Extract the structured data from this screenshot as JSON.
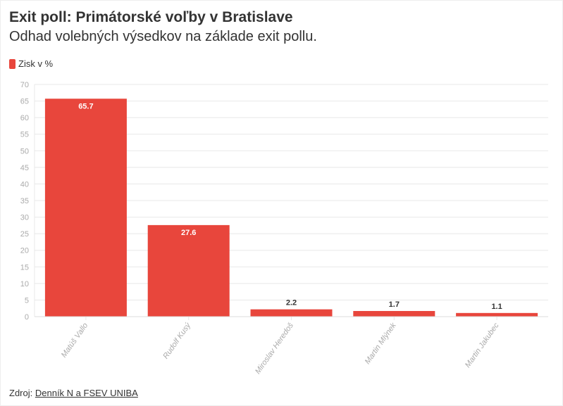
{
  "title": "Exit poll: Primátorské voľby v Bratislave",
  "subtitle": "Odhad volebných výsedkov na základe exit pollu.",
  "legend_label": "Zisk v %",
  "source_prefix": "Zdroj:",
  "source_link": "Denník N a FSEV UNIBA",
  "colors": {
    "bar": "#e8463c",
    "grid": "#e8e8e8",
    "tick": "#aaaaaa"
  },
  "chart_data": {
    "type": "bar",
    "categories": [
      "Matúš Vallo",
      "Rudolf Kusý",
      "Miroslav Heredoš",
      "Martin Mlýnek",
      "Martin Jakubec"
    ],
    "series": [
      {
        "name": "Zisk v %",
        "values": [
          65.7,
          27.6,
          2.2,
          1.7,
          1.1
        ]
      }
    ],
    "data_labels": [
      "65.7",
      "27.6",
      "2.2",
      "1.7",
      "1.1"
    ],
    "ylim": [
      0,
      70
    ],
    "yticks": [
      "0",
      "5",
      "10",
      "15",
      "20",
      "25",
      "30",
      "35",
      "40",
      "45",
      "50",
      "55",
      "60",
      "65",
      "70"
    ],
    "grid": true,
    "legend_position": "top-left"
  }
}
